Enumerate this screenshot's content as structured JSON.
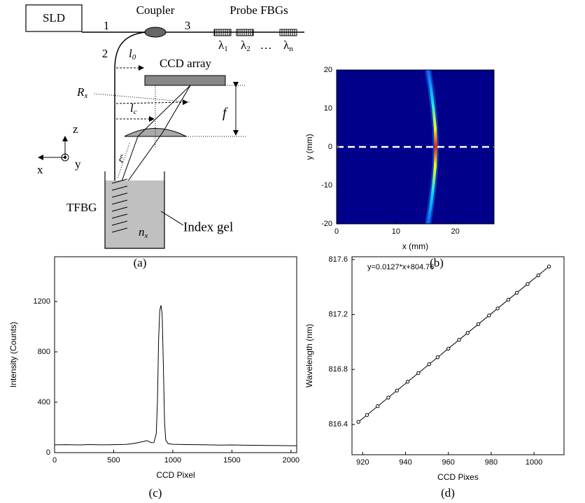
{
  "panel_labels": [
    "(a)",
    "(b)",
    "(c)",
    "(d)"
  ],
  "diagram": {
    "source": "SLD",
    "coupler": "Coupler",
    "probe": "Probe FBGs",
    "ports": [
      "1",
      "2",
      "3"
    ],
    "wavelengths": [
      {
        "symbol": "λ",
        "sub": "1"
      },
      {
        "symbol": "λ",
        "sub": "2"
      },
      {
        "symbol": "λ",
        "sub": "n"
      }
    ],
    "ellipsis": "…",
    "ccd": "CCD array",
    "l0": {
      "symbol": "l",
      "sub": "0"
    },
    "rx": {
      "symbol": "R",
      "sub": "x"
    },
    "lc": {
      "symbol": "l",
      "sub": "c"
    },
    "f": "f",
    "axes": [
      "z",
      "x",
      "y"
    ],
    "xi": "ξ",
    "tfbg": "TFBG",
    "nx": {
      "symbol": "n",
      "sub": "x"
    },
    "gel": "Index gel"
  },
  "chart_data": [
    {
      "type": "heatmap",
      "x_label": "x (mm)",
      "y_label": "y (mm)",
      "background": "#00008b",
      "ridge": {
        "x": [
          15.4,
          15.9,
          16.3,
          16.6,
          16.7,
          16.6,
          16.3,
          15.9,
          15.4
        ],
        "y": [
          20,
          15,
          10,
          5,
          0,
          -5,
          -10,
          -15,
          -20
        ]
      },
      "hline": 0,
      "xlim": [
        0,
        26.5
      ],
      "xticks": [
        0,
        10,
        20
      ],
      "ylim": [
        -20,
        20
      ],
      "yticks": [
        -20,
        -10,
        0,
        10,
        20
      ]
    },
    {
      "type": "line",
      "x_label": "CCD Pixel",
      "y_label": "Intensity (Counts)",
      "color": "#000000",
      "x": [
        0,
        100,
        200,
        300,
        400,
        500,
        600,
        650,
        700,
        750,
        780,
        800,
        820,
        840,
        860,
        870,
        880,
        890,
        900,
        910,
        920,
        930,
        940,
        960,
        1000,
        1100,
        1200,
        1300,
        1400,
        1500,
        1600,
        1700,
        1800,
        1900,
        2000,
        2048
      ],
      "values": [
        62,
        63,
        61,
        64,
        62,
        63,
        65,
        70,
        78,
        88,
        95,
        88,
        78,
        80,
        150,
        400,
        900,
        1130,
        1170,
        1100,
        700,
        250,
        100,
        72,
        66,
        64,
        63,
        62,
        60,
        61,
        59,
        58,
        57,
        56,
        55,
        55
      ],
      "xlim": [
        0,
        2048
      ],
      "xticks": [
        0,
        500,
        1000,
        1500,
        2000
      ],
      "ylim": [
        0,
        1555
      ],
      "yticks": [
        0,
        400,
        800,
        1200
      ]
    },
    {
      "type": "scatter",
      "x_label": "CCD Pixes",
      "y_label": "Wavelength (nm)",
      "color": "#000000",
      "x": [
        918,
        922,
        927,
        932,
        936,
        941,
        946,
        951,
        955,
        960,
        965,
        969,
        974,
        979,
        983,
        988,
        992,
        997,
        1002,
        1007
      ],
      "values": [
        816.419,
        816.469,
        816.533,
        816.596,
        816.647,
        816.711,
        816.774,
        816.838,
        816.889,
        816.952,
        817.016,
        817.066,
        817.13,
        817.193,
        817.244,
        817.308,
        817.358,
        817.422,
        817.485,
        817.549
      ],
      "fit": {
        "slope": 0.0127,
        "intercept": 804.76,
        "label": "y=0.0127*x+804.76"
      },
      "xlim": [
        915,
        1014
      ],
      "xticks": [
        920,
        940,
        960,
        980,
        1000
      ],
      "ylim": [
        816.18,
        817.62
      ],
      "yticks": [
        816.4,
        816.8,
        817.2,
        817.6
      ]
    }
  ]
}
